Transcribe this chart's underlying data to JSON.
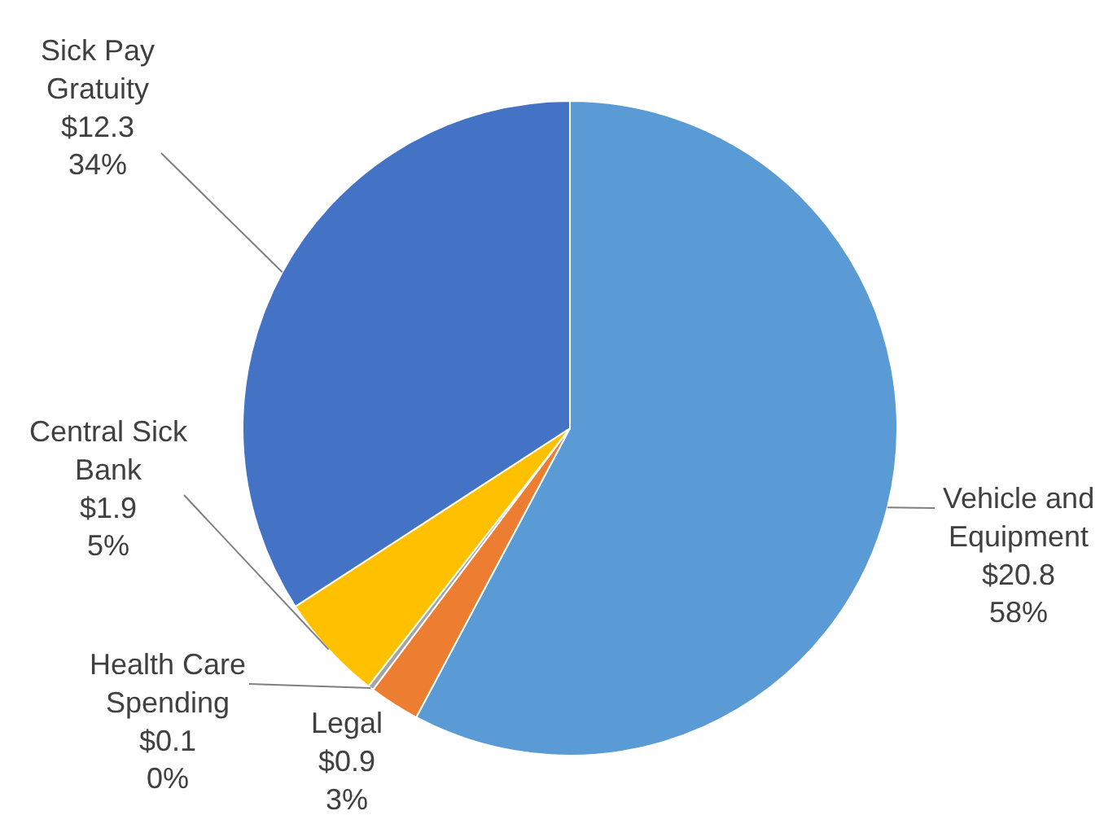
{
  "chart_data": {
    "type": "pie",
    "categories": [
      "Vehicle and Equipment",
      "Legal",
      "Health Care Spending",
      "Central Sick Bank",
      "Sick Pay Gratuity"
    ],
    "values": [
      20.8,
      0.9,
      0.1,
      1.9,
      12.3
    ],
    "colors": [
      "#5b9bd5",
      "#ed7d31",
      "#a5a5a5",
      "#ffc000",
      "#4472c4"
    ],
    "value_labels": [
      "$20.8\n58%",
      "$0.9\n3%",
      "$0.1\n0%",
      "$1.9\n5%",
      "$12.3\n34%"
    ],
    "legend": false
  }
}
